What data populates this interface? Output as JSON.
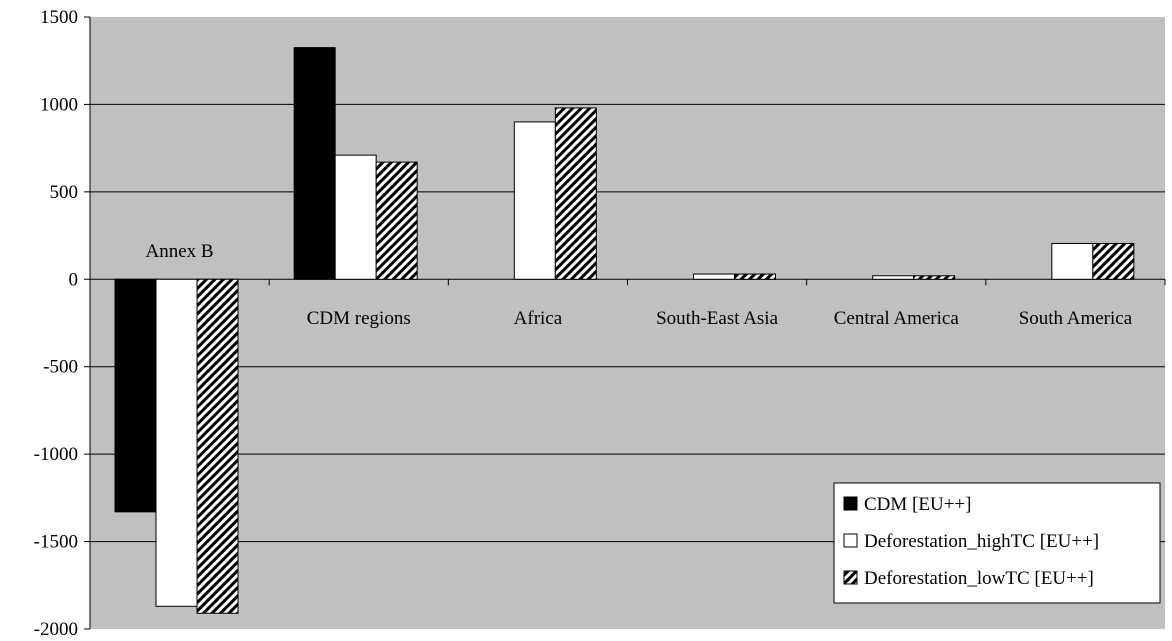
{
  "colors": {
    "plot_bg": "#c0c0c0",
    "grid": "#000000",
    "cdm": "#000000",
    "high": "#ffffff",
    "low_hatch": "#000000",
    "low_bg": "#ffffff"
  },
  "chart_data": {
    "type": "bar",
    "categories": [
      "Annex B",
      "CDM regions",
      "Africa",
      "South-East Asia",
      "Central America",
      "South America"
    ],
    "series": [
      {
        "name": "CDM [EU++]",
        "values": [
          -1330,
          1325,
          0,
          0,
          0,
          0
        ]
      },
      {
        "name": "Deforestation_highTC [EU++]",
        "values": [
          -1870,
          710,
          900,
          30,
          20,
          205
        ]
      },
      {
        "name": "Deforestation_lowTC [EU++]",
        "values": [
          -1910,
          670,
          980,
          30,
          20,
          205
        ]
      }
    ],
    "y_ticks": [
      "1500",
      "1000",
      "500",
      "0",
      "-500",
      "-1000",
      "-1500",
      "-2000"
    ],
    "ylim": [
      -2000,
      1500
    ],
    "grid": true,
    "legend_position": "bottom-right",
    "title": "",
    "xlabel": "",
    "ylabel": ""
  }
}
